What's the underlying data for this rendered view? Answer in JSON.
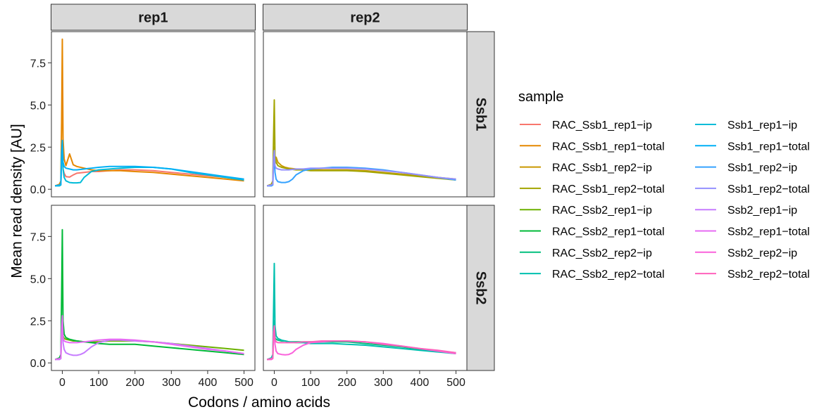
{
  "chart_data": {
    "type": "line",
    "title": "",
    "xlabel": "Codons / amino acids",
    "ylabel": "Mean read density [AU]",
    "xlim": [
      -30,
      530
    ],
    "ylim": [
      -0.45,
      9.35
    ],
    "x_ticks": [
      0,
      100,
      200,
      300,
      400,
      500
    ],
    "y_ticks": [
      0,
      2.5,
      5,
      7.5
    ],
    "x_tick_labels": [
      "0",
      "100",
      "200",
      "300",
      "400",
      "500"
    ],
    "y_tick_labels": [
      "0.0",
      "2.5",
      "5.0",
      "7.5"
    ],
    "grid": false,
    "facet_columns": [
      "rep1",
      "rep2"
    ],
    "facet_rows": [
      "Ssb1",
      "Ssb2"
    ],
    "legend": {
      "title": "sample",
      "position": "right",
      "columns": 2,
      "entries": [
        {
          "name": "RAC_Ssb1_rep1−ip",
          "color": "#F8766D"
        },
        {
          "name": "RAC_Ssb1_rep1−total",
          "color": "#E58700"
        },
        {
          "name": "RAC_Ssb1_rep2−ip",
          "color": "#C99800"
        },
        {
          "name": "RAC_Ssb1_rep2−total",
          "color": "#A3A500"
        },
        {
          "name": "RAC_Ssb2_rep1−ip",
          "color": "#6BB100"
        },
        {
          "name": "RAC_Ssb2_rep1−total",
          "color": "#00BA38"
        },
        {
          "name": "RAC_Ssb2_rep2−ip",
          "color": "#00BF7D"
        },
        {
          "name": "RAC_Ssb2_rep2−total",
          "color": "#00C0AF"
        },
        {
          "name": "Ssb1_rep1−ip",
          "color": "#00BCD8"
        },
        {
          "name": "Ssb1_rep1−total",
          "color": "#00B0F6"
        },
        {
          "name": "Ssb1_rep2−ip",
          "color": "#35A2FF"
        },
        {
          "name": "Ssb1_rep2−total",
          "color": "#9590FF"
        },
        {
          "name": "Ssb2_rep1−ip",
          "color": "#C77CFF"
        },
        {
          "name": "Ssb2_rep1−total",
          "color": "#E76BF3"
        },
        {
          "name": "Ssb2_rep2−ip",
          "color": "#FA62DB"
        },
        {
          "name": "Ssb2_rep2−total",
          "color": "#FF62BC"
        }
      ]
    },
    "panels": [
      {
        "col": "rep1",
        "row": "Ssb1",
        "series": [
          {
            "name": "RAC_Ssb1_rep1−ip",
            "color": "#F8766D",
            "x": [
              -20,
              -8,
              -4,
              -2,
              0,
              2,
              5,
              10,
              20,
              30,
              40,
              60,
              80,
              100,
              130,
              160,
              200,
              250,
              300,
              350,
              400,
              450,
              500
            ],
            "y": [
              0.2,
              0.25,
              0.3,
              2.0,
              2.6,
              1.2,
              0.95,
              0.75,
              0.72,
              0.85,
              0.95,
              1.0,
              1.05,
              1.05,
              1.1,
              1.15,
              1.15,
              1.1,
              1.0,
              0.9,
              0.8,
              0.7,
              0.6
            ]
          },
          {
            "name": "RAC_Ssb1_rep1−total",
            "color": "#E58700",
            "x": [
              -20,
              -8,
              -4,
              -2,
              0,
              2,
              5,
              10,
              20,
              30,
              40,
              60,
              80,
              100,
              130,
              160,
              200,
              250,
              300,
              350,
              400,
              450,
              500
            ],
            "y": [
              0.2,
              0.3,
              0.5,
              4.0,
              8.9,
              3.0,
              1.8,
              1.4,
              2.1,
              1.45,
              1.35,
              1.25,
              1.15,
              1.1,
              1.1,
              1.1,
              1.05,
              1.0,
              0.9,
              0.8,
              0.7,
              0.6,
              0.5
            ]
          },
          {
            "name": "Ssb1_rep1−ip",
            "color": "#00BCD8",
            "x": [
              -20,
              -8,
              -4,
              -2,
              0,
              2,
              5,
              10,
              20,
              30,
              40,
              50,
              60,
              80,
              100,
              130,
              160,
              200,
              250,
              300,
              350,
              400,
              450,
              500
            ],
            "y": [
              0.2,
              0.2,
              0.25,
              2.0,
              2.6,
              1.2,
              0.7,
              0.5,
              0.4,
              0.38,
              0.38,
              0.4,
              0.7,
              1.05,
              1.15,
              1.2,
              1.25,
              1.3,
              1.3,
              1.2,
              1.0,
              0.85,
              0.7,
              0.55
            ]
          },
          {
            "name": "Ssb1_rep1−total",
            "color": "#00B0F6",
            "x": [
              -20,
              -8,
              -4,
              -2,
              0,
              2,
              5,
              10,
              20,
              30,
              40,
              60,
              80,
              100,
              130,
              160,
              200,
              250,
              300,
              350,
              400,
              450,
              500
            ],
            "y": [
              0.2,
              0.25,
              0.3,
              2.2,
              2.9,
              1.6,
              1.35,
              1.25,
              1.2,
              1.15,
              1.15,
              1.2,
              1.25,
              1.3,
              1.35,
              1.35,
              1.35,
              1.3,
              1.2,
              1.05,
              0.9,
              0.75,
              0.6
            ]
          }
        ]
      },
      {
        "col": "rep2",
        "row": "Ssb1",
        "series": [
          {
            "name": "RAC_Ssb1_rep2−ip",
            "color": "#C99800",
            "x": [
              -20,
              -8,
              -4,
              -2,
              0,
              2,
              5,
              10,
              20,
              30,
              40,
              60,
              80,
              100,
              130,
              160,
              200,
              250,
              300,
              350,
              400,
              450,
              500
            ],
            "y": [
              0.2,
              0.25,
              0.3,
              2.0,
              2.5,
              1.5,
              1.9,
              1.6,
              1.4,
              1.3,
              1.25,
              1.2,
              1.15,
              1.15,
              1.15,
              1.15,
              1.15,
              1.1,
              1.0,
              0.9,
              0.8,
              0.7,
              0.6
            ]
          },
          {
            "name": "RAC_Ssb1_rep2−total",
            "color": "#A3A500",
            "x": [
              -20,
              -8,
              -4,
              -2,
              0,
              2,
              5,
              10,
              20,
              30,
              40,
              60,
              80,
              100,
              130,
              160,
              200,
              250,
              300,
              350,
              400,
              450,
              500
            ],
            "y": [
              0.2,
              0.3,
              0.5,
              3.0,
              5.3,
              2.0,
              1.6,
              1.4,
              1.3,
              1.25,
              1.2,
              1.15,
              1.15,
              1.1,
              1.1,
              1.1,
              1.1,
              1.05,
              0.95,
              0.85,
              0.75,
              0.65,
              0.55
            ]
          },
          {
            "name": "Ssb1_rep2−ip",
            "color": "#35A2FF",
            "x": [
              -20,
              -8,
              -4,
              -2,
              0,
              2,
              5,
              10,
              20,
              30,
              40,
              50,
              60,
              80,
              100,
              130,
              160,
              200,
              250,
              300,
              350,
              400,
              450,
              500
            ],
            "y": [
              0.2,
              0.2,
              0.25,
              1.5,
              2.0,
              1.0,
              0.6,
              0.45,
              0.4,
              0.4,
              0.45,
              0.6,
              0.85,
              1.1,
              1.2,
              1.25,
              1.3,
              1.3,
              1.25,
              1.15,
              1.0,
              0.85,
              0.7,
              0.55
            ]
          },
          {
            "name": "Ssb1_rep2−total",
            "color": "#9590FF",
            "x": [
              -20,
              -8,
              -4,
              -2,
              0,
              2,
              5,
              10,
              20,
              30,
              40,
              60,
              80,
              100,
              130,
              160,
              200,
              250,
              300,
              350,
              400,
              450,
              500
            ],
            "y": [
              0.2,
              0.25,
              0.3,
              1.8,
              2.3,
              1.4,
              1.25,
              1.2,
              1.15,
              1.15,
              1.15,
              1.2,
              1.2,
              1.25,
              1.25,
              1.25,
              1.25,
              1.2,
              1.1,
              1.0,
              0.85,
              0.7,
              0.6
            ]
          }
        ]
      },
      {
        "col": "rep1",
        "row": "Ssb2",
        "series": [
          {
            "name": "RAC_Ssb2_rep1−ip",
            "color": "#6BB100",
            "x": [
              -20,
              -8,
              -4,
              -2,
              0,
              2,
              5,
              10,
              20,
              30,
              40,
              60,
              80,
              100,
              130,
              160,
              200,
              250,
              300,
              350,
              400,
              450,
              500
            ],
            "y": [
              0.2,
              0.25,
              0.3,
              2.0,
              2.6,
              1.6,
              1.45,
              1.4,
              1.35,
              1.3,
              1.3,
              1.25,
              1.25,
              1.25,
              1.3,
              1.3,
              1.3,
              1.25,
              1.15,
              1.05,
              0.95,
              0.85,
              0.75
            ]
          },
          {
            "name": "RAC_Ssb2_rep1−total",
            "color": "#00BA38",
            "x": [
              -20,
              -8,
              -4,
              -2,
              0,
              2,
              5,
              10,
              20,
              30,
              40,
              60,
              80,
              100,
              130,
              160,
              200,
              250,
              300,
              350,
              400,
              450,
              500
            ],
            "y": [
              0.2,
              0.3,
              0.5,
              4.0,
              7.9,
              2.5,
              1.7,
              1.5,
              1.4,
              1.35,
              1.3,
              1.25,
              1.2,
              1.15,
              1.1,
              1.1,
              1.1,
              1.0,
              0.9,
              0.8,
              0.7,
              0.6,
              0.5
            ]
          },
          {
            "name": "Ssb2_rep1−ip",
            "color": "#C77CFF",
            "x": [
              -20,
              -8,
              -4,
              -2,
              0,
              2,
              5,
              10,
              20,
              30,
              40,
              50,
              60,
              80,
              100,
              130,
              160,
              200,
              250,
              300,
              350,
              400,
              450,
              500
            ],
            "y": [
              0.2,
              0.2,
              0.25,
              2.0,
              2.5,
              1.2,
              0.8,
              0.6,
              0.5,
              0.45,
              0.45,
              0.5,
              0.6,
              0.95,
              1.2,
              1.35,
              1.35,
              1.3,
              1.25,
              1.15,
              1.0,
              0.85,
              0.7,
              0.55
            ]
          },
          {
            "name": "Ssb2_rep1−total",
            "color": "#E76BF3",
            "x": [
              -20,
              -8,
              -4,
              -2,
              0,
              2,
              5,
              10,
              20,
              30,
              40,
              60,
              80,
              100,
              130,
              160,
              200,
              250,
              300,
              350,
              400,
              450,
              500
            ],
            "y": [
              0.2,
              0.25,
              0.3,
              2.1,
              2.8,
              1.5,
              1.3,
              1.25,
              1.2,
              1.2,
              1.2,
              1.25,
              1.3,
              1.35,
              1.4,
              1.4,
              1.35,
              1.25,
              1.1,
              0.95,
              0.8,
              0.7,
              0.55
            ]
          }
        ]
      },
      {
        "col": "rep2",
        "row": "Ssb2",
        "series": [
          {
            "name": "RAC_Ssb2_rep2−ip",
            "color": "#00BF7D",
            "x": [
              -20,
              -8,
              -4,
              -2,
              0,
              2,
              5,
              10,
              20,
              30,
              40,
              60,
              80,
              100,
              130,
              160,
              200,
              250,
              300,
              350,
              400,
              450,
              500
            ],
            "y": [
              0.2,
              0.25,
              0.3,
              2.0,
              2.5,
              1.5,
              1.4,
              1.35,
              1.3,
              1.3,
              1.25,
              1.25,
              1.25,
              1.25,
              1.25,
              1.25,
              1.25,
              1.15,
              1.05,
              0.95,
              0.8,
              0.7,
              0.6
            ]
          },
          {
            "name": "RAC_Ssb2_rep2−total",
            "color": "#00C0AF",
            "x": [
              -20,
              -8,
              -4,
              -2,
              0,
              2,
              5,
              10,
              20,
              30,
              40,
              60,
              80,
              100,
              130,
              160,
              200,
              250,
              300,
              350,
              400,
              450,
              500
            ],
            "y": [
              0.2,
              0.3,
              0.5,
              3.0,
              5.9,
              2.2,
              1.6,
              1.45,
              1.35,
              1.3,
              1.25,
              1.2,
              1.2,
              1.15,
              1.15,
              1.15,
              1.1,
              1.05,
              0.95,
              0.85,
              0.75,
              0.65,
              0.55
            ]
          },
          {
            "name": "Ssb2_rep2−ip",
            "color": "#FA62DB",
            "x": [
              -20,
              -8,
              -4,
              -2,
              0,
              2,
              5,
              10,
              20,
              30,
              40,
              50,
              60,
              80,
              100,
              130,
              160,
              200,
              250,
              300,
              350,
              400,
              450,
              500
            ],
            "y": [
              0.2,
              0.2,
              0.25,
              1.5,
              1.9,
              1.1,
              0.7,
              0.55,
              0.5,
              0.48,
              0.5,
              0.6,
              0.8,
              1.05,
              1.2,
              1.25,
              1.3,
              1.3,
              1.25,
              1.15,
              1.0,
              0.85,
              0.7,
              0.55
            ]
          },
          {
            "name": "Ssb2_rep2−total",
            "color": "#FF62BC",
            "x": [
              -20,
              -8,
              -4,
              -2,
              0,
              2,
              5,
              10,
              20,
              30,
              40,
              60,
              80,
              100,
              130,
              160,
              200,
              250,
              300,
              350,
              400,
              450,
              500
            ],
            "y": [
              0.2,
              0.25,
              0.3,
              1.8,
              2.2,
              1.4,
              1.25,
              1.2,
              1.2,
              1.2,
              1.2,
              1.2,
              1.25,
              1.25,
              1.3,
              1.3,
              1.3,
              1.25,
              1.1,
              1.0,
              0.85,
              0.75,
              0.6
            ]
          }
        ]
      }
    ]
  }
}
